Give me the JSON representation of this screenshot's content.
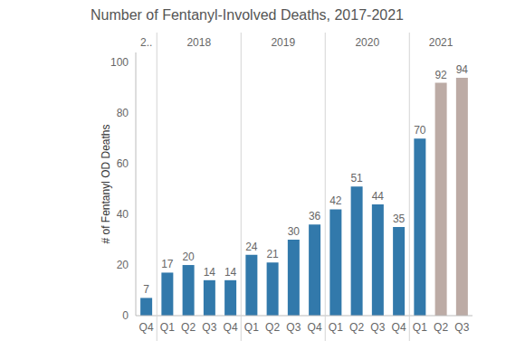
{
  "chart_data": {
    "type": "bar",
    "title": "Number of Fentanyl-Involved Deaths, 2017-2021",
    "y_label": "# of Fentanyl OD Deaths",
    "categories": [
      "Q4",
      "Q1",
      "Q2",
      "Q3",
      "Q4",
      "Q1",
      "Q2",
      "Q3",
      "Q4",
      "Q1",
      "Q2",
      "Q3",
      "Q4",
      "Q1",
      "Q2",
      "Q3"
    ],
    "groups": [
      "2..",
      "2018",
      "2018",
      "2018",
      "2018",
      "2019",
      "2019",
      "2019",
      "2019",
      "2020",
      "2020",
      "2020",
      "2020",
      "2021",
      "2021",
      "2021"
    ],
    "values": [
      7,
      17,
      20,
      14,
      14,
      24,
      21,
      30,
      36,
      42,
      51,
      44,
      35,
      70,
      92,
      94
    ],
    "colors": [
      "#3279ab",
      "#3279ab",
      "#3279ab",
      "#3279ab",
      "#3279ab",
      "#3279ab",
      "#3279ab",
      "#3279ab",
      "#3279ab",
      "#3279ab",
      "#3279ab",
      "#3279ab",
      "#3279ab",
      "#3279ab",
      "#bcaba5",
      "#bcaba5"
    ],
    "ylim": [
      0,
      104
    ],
    "yticks": [
      0,
      20,
      40,
      60,
      80,
      100
    ],
    "data_labels": true,
    "grid": false
  }
}
